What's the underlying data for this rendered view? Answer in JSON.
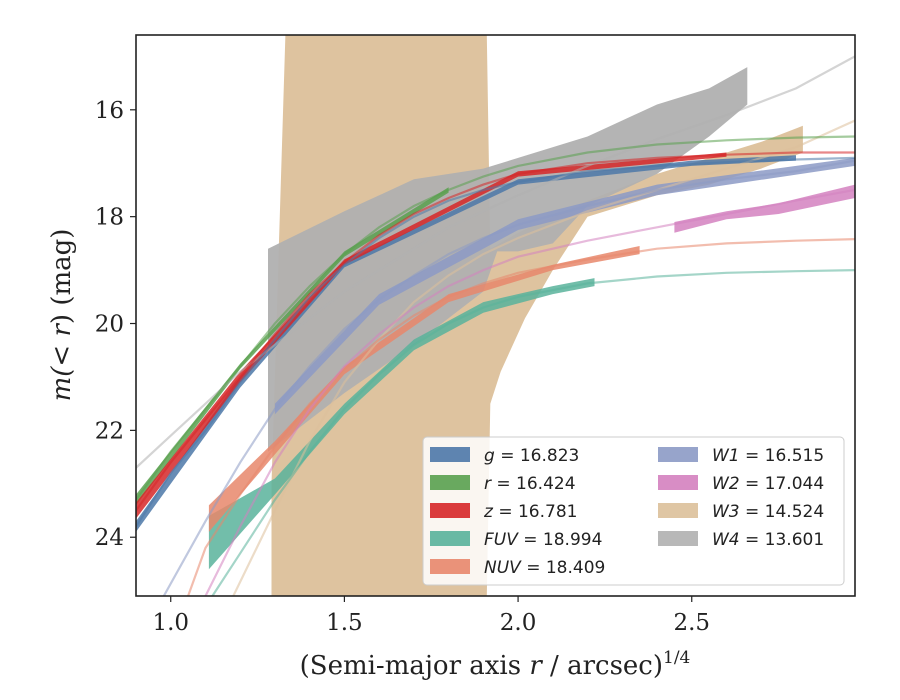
{
  "chart_data": {
    "type": "line",
    "title": "",
    "xlabel": "(Semi-major axis r / arcsec)",
    "xlabel_parts": {
      "pre": "(Semi-major axis ",
      "var": "r",
      "post": " / arcsec)",
      "sup": "1/4"
    },
    "ylabel_parts": {
      "pre": "m(",
      "op": "< r",
      "post": ") (mag)"
    },
    "xlim": [
      0.9,
      2.97
    ],
    "ylim": [
      25.1,
      14.6
    ],
    "y_inverted": true,
    "grid": false,
    "legend_position": "lower-right",
    "x_ticks": [
      "1.0",
      "1.5",
      "2.0",
      "2.5"
    ],
    "y_ticks": [
      "16",
      "18",
      "20",
      "22",
      "24"
    ],
    "series": [
      {
        "id": "g",
        "name": "g = 16.823",
        "band": "g",
        "value": "16.823",
        "color": "#4c78a8",
        "model": [
          [
            0.9,
            23.8
          ],
          [
            1.0,
            22.8
          ],
          [
            1.1,
            22.0
          ],
          [
            1.2,
            21.1
          ],
          [
            1.3,
            20.3
          ],
          [
            1.4,
            19.5
          ],
          [
            1.5,
            18.9
          ],
          [
            1.6,
            18.4
          ],
          [
            1.7,
            18.0
          ],
          [
            1.8,
            17.7
          ],
          [
            1.9,
            17.5
          ],
          [
            2.0,
            17.35
          ],
          [
            2.2,
            17.15
          ],
          [
            2.4,
            17.05
          ],
          [
            2.6,
            16.98
          ],
          [
            2.8,
            16.93
          ],
          [
            2.97,
            16.9
          ]
        ],
        "band_lo": [
          [
            0.9,
            23.7
          ],
          [
            1.2,
            21.0
          ],
          [
            1.5,
            18.85
          ],
          [
            2.0,
            17.3
          ],
          [
            2.5,
            16.95
          ],
          [
            2.8,
            16.85
          ]
        ],
        "band_hi": [
          [
            2.8,
            16.95
          ],
          [
            2.5,
            17.05
          ],
          [
            2.0,
            17.4
          ],
          [
            1.5,
            18.95
          ],
          [
            1.2,
            21.2
          ],
          [
            0.9,
            23.9
          ]
        ]
      },
      {
        "id": "r",
        "name": "r = 16.424",
        "band": "r",
        "value": "16.424",
        "color": "#59a14f",
        "model": [
          [
            0.9,
            23.3
          ],
          [
            1.0,
            22.4
          ],
          [
            1.1,
            21.6
          ],
          [
            1.2,
            20.8
          ],
          [
            1.3,
            20.0
          ],
          [
            1.4,
            19.3
          ],
          [
            1.5,
            18.7
          ],
          [
            1.6,
            18.2
          ],
          [
            1.7,
            17.8
          ],
          [
            1.8,
            17.5
          ],
          [
            1.9,
            17.25
          ],
          [
            2.0,
            17.05
          ],
          [
            2.2,
            16.8
          ],
          [
            2.4,
            16.65
          ],
          [
            2.6,
            16.57
          ],
          [
            2.8,
            16.52
          ],
          [
            2.97,
            16.5
          ]
        ],
        "band_lo": [
          [
            0.9,
            23.2
          ],
          [
            1.2,
            20.75
          ],
          [
            1.5,
            18.65
          ],
          [
            1.8,
            17.45
          ]
        ],
        "band_hi": [
          [
            1.8,
            17.55
          ],
          [
            1.5,
            18.75
          ],
          [
            1.2,
            20.85
          ],
          [
            0.9,
            23.4
          ]
        ]
      },
      {
        "id": "z",
        "name": "z = 16.781",
        "band": "z",
        "value": "16.781",
        "color": "#d62728",
        "model": [
          [
            0.9,
            23.5
          ],
          [
            1.0,
            22.6
          ],
          [
            1.1,
            21.8
          ],
          [
            1.2,
            21.0
          ],
          [
            1.3,
            20.2
          ],
          [
            1.4,
            19.45
          ],
          [
            1.5,
            18.85
          ],
          [
            1.6,
            18.35
          ],
          [
            1.7,
            17.95
          ],
          [
            1.8,
            17.65
          ],
          [
            1.9,
            17.4
          ],
          [
            2.0,
            17.2
          ],
          [
            2.2,
            17.0
          ],
          [
            2.4,
            16.9
          ],
          [
            2.6,
            16.84
          ],
          [
            2.8,
            16.8
          ],
          [
            2.97,
            16.8
          ]
        ],
        "band_lo": [
          [
            0.9,
            23.35
          ],
          [
            1.2,
            20.9
          ],
          [
            1.5,
            18.8
          ],
          [
            2.0,
            17.15
          ],
          [
            2.6,
            16.8
          ]
        ],
        "band_hi": [
          [
            2.6,
            16.88
          ],
          [
            2.0,
            17.25
          ],
          [
            1.5,
            18.9
          ],
          [
            1.2,
            21.1
          ],
          [
            0.9,
            23.65
          ]
        ]
      },
      {
        "id": "fuv",
        "name": "FUV = 18.994",
        "band": "FUV",
        "value": "18.994",
        "color": "#59b39b",
        "model": [
          [
            1.12,
            25.1
          ],
          [
            1.2,
            24.3
          ],
          [
            1.3,
            23.3
          ],
          [
            1.4,
            22.4
          ],
          [
            1.5,
            21.6
          ],
          [
            1.6,
            20.95
          ],
          [
            1.7,
            20.4
          ],
          [
            1.8,
            20.0
          ],
          [
            1.9,
            19.7
          ],
          [
            2.0,
            19.5
          ],
          [
            2.2,
            19.25
          ],
          [
            2.4,
            19.12
          ],
          [
            2.6,
            19.05
          ],
          [
            2.8,
            19.02
          ],
          [
            2.97,
            19.0
          ]
        ],
        "band_lo": [
          [
            1.11,
            23.6
          ],
          [
            1.3,
            22.9
          ],
          [
            1.5,
            21.5
          ],
          [
            1.7,
            20.3
          ],
          [
            1.9,
            19.6
          ],
          [
            2.1,
            19.3
          ],
          [
            2.22,
            19.15
          ]
        ],
        "band_hi": [
          [
            2.22,
            19.3
          ],
          [
            2.1,
            19.45
          ],
          [
            1.9,
            19.8
          ],
          [
            1.7,
            20.5
          ],
          [
            1.5,
            21.7
          ],
          [
            1.3,
            23.2
          ],
          [
            1.11,
            24.6
          ]
        ]
      },
      {
        "id": "nuv",
        "name": "NUV = 18.409",
        "band": "NUV",
        "value": "18.409",
        "color": "#e8876b",
        "model": [
          [
            1.05,
            25.1
          ],
          [
            1.1,
            24.2
          ],
          [
            1.2,
            23.2
          ],
          [
            1.3,
            22.3
          ],
          [
            1.4,
            21.5
          ],
          [
            1.5,
            20.85
          ],
          [
            1.6,
            20.3
          ],
          [
            1.7,
            19.85
          ],
          [
            1.8,
            19.5
          ],
          [
            1.9,
            19.25
          ],
          [
            2.0,
            19.05
          ],
          [
            2.2,
            18.8
          ],
          [
            2.4,
            18.6
          ],
          [
            2.6,
            18.5
          ],
          [
            2.8,
            18.45
          ],
          [
            2.97,
            18.42
          ]
        ],
        "band_lo": [
          [
            1.11,
            23.4
          ],
          [
            1.3,
            22.2
          ],
          [
            1.5,
            20.8
          ],
          [
            1.8,
            19.45
          ],
          [
            2.1,
            18.9
          ],
          [
            2.35,
            18.55
          ]
        ],
        "band_hi": [
          [
            2.35,
            18.7
          ],
          [
            2.1,
            19.0
          ],
          [
            1.8,
            19.6
          ],
          [
            1.5,
            20.95
          ],
          [
            1.3,
            22.45
          ],
          [
            1.11,
            23.9
          ]
        ]
      },
      {
        "id": "w1",
        "name": "W1 = 16.515",
        "band": "W1",
        "value": "16.515",
        "color": "#8c9ac5",
        "model": [
          [
            0.98,
            25.1
          ],
          [
            1.1,
            23.7
          ],
          [
            1.2,
            22.6
          ],
          [
            1.3,
            21.6
          ],
          [
            1.4,
            20.8
          ],
          [
            1.5,
            20.1
          ],
          [
            1.6,
            19.55
          ],
          [
            1.7,
            19.1
          ],
          [
            1.8,
            18.7
          ],
          [
            1.9,
            18.4
          ],
          [
            2.0,
            18.15
          ],
          [
            2.2,
            17.8
          ],
          [
            2.4,
            17.5
          ],
          [
            2.6,
            17.3
          ],
          [
            2.8,
            17.15
          ],
          [
            2.97,
            16.95
          ]
        ],
        "band_lo": [
          [
            1.3,
            21.5
          ],
          [
            1.6,
            19.45
          ],
          [
            2.0,
            18.05
          ],
          [
            2.4,
            17.4
          ],
          [
            2.97,
            16.9
          ]
        ],
        "band_hi": [
          [
            2.97,
            17.05
          ],
          [
            2.4,
            17.6
          ],
          [
            2.0,
            18.25
          ],
          [
            1.6,
            19.65
          ],
          [
            1.3,
            21.7
          ]
        ]
      },
      {
        "id": "w2",
        "name": "W2 = 17.044",
        "band": "W2",
        "value": "17.044",
        "color": "#d481bf",
        "model": [
          [
            1.1,
            25.1
          ],
          [
            1.2,
            23.8
          ],
          [
            1.3,
            22.6
          ],
          [
            1.4,
            21.6
          ],
          [
            1.5,
            20.8
          ],
          [
            1.6,
            20.2
          ],
          [
            1.7,
            19.7
          ],
          [
            1.8,
            19.3
          ],
          [
            1.9,
            19.0
          ],
          [
            2.0,
            18.75
          ],
          [
            2.2,
            18.45
          ],
          [
            2.4,
            18.2
          ],
          [
            2.6,
            17.95
          ],
          [
            2.8,
            17.7
          ],
          [
            2.97,
            17.5
          ]
        ],
        "band_lo": [
          [
            2.45,
            18.1
          ],
          [
            2.6,
            17.9
          ],
          [
            2.75,
            17.75
          ],
          [
            2.97,
            17.4
          ]
        ],
        "band_hi": [
          [
            2.97,
            17.65
          ],
          [
            2.75,
            17.95
          ],
          [
            2.6,
            18.05
          ],
          [
            2.45,
            18.3
          ]
        ]
      },
      {
        "id": "w3",
        "name": "W3 = 14.524",
        "band": "W3",
        "value": "14.524",
        "color": "#dcc09a",
        "model": [
          [
            1.18,
            25.1
          ],
          [
            1.3,
            23.5
          ],
          [
            1.4,
            22.2
          ],
          [
            1.5,
            21.1
          ],
          [
            1.6,
            20.3
          ],
          [
            1.7,
            19.6
          ],
          [
            1.8,
            19.1
          ],
          [
            1.9,
            18.7
          ],
          [
            2.0,
            18.4
          ],
          [
            2.2,
            17.9
          ],
          [
            2.4,
            17.5
          ],
          [
            2.6,
            17.1
          ],
          [
            2.8,
            16.7
          ],
          [
            2.97,
            16.2
          ]
        ],
        "band_lo": [
          [
            1.29,
            25.1
          ],
          [
            1.29,
            23.0
          ],
          [
            1.33,
            14.6
          ],
          [
            1.91,
            14.6
          ],
          [
            1.92,
            18.6
          ],
          [
            2.0,
            18.3
          ],
          [
            2.2,
            17.7
          ],
          [
            2.4,
            17.2
          ],
          [
            2.55,
            16.9
          ],
          [
            2.7,
            16.6
          ],
          [
            2.82,
            16.3
          ]
        ],
        "band_hi": [
          [
            2.82,
            16.8
          ],
          [
            2.7,
            17.1
          ],
          [
            2.55,
            17.4
          ],
          [
            2.4,
            17.6
          ],
          [
            2.2,
            18.0
          ],
          [
            2.1,
            19.0
          ],
          [
            2.02,
            19.9
          ],
          [
            1.95,
            20.9
          ],
          [
            1.92,
            21.5
          ],
          [
            1.91,
            25.1
          ]
        ]
      },
      {
        "id": "w4",
        "name": "W4 = 13.601",
        "band": "W4",
        "value": "13.601",
        "color": "#b0b0b0",
        "model": [
          [
            0.9,
            22.7
          ],
          [
            1.0,
            22.1
          ],
          [
            1.1,
            21.5
          ],
          [
            1.2,
            20.9
          ],
          [
            1.3,
            20.4
          ],
          [
            1.4,
            19.9
          ],
          [
            1.5,
            19.4
          ],
          [
            1.6,
            19.0
          ],
          [
            1.7,
            18.6
          ],
          [
            1.8,
            18.2
          ],
          [
            1.9,
            17.9
          ],
          [
            2.0,
            17.6
          ],
          [
            2.2,
            17.05
          ],
          [
            2.4,
            16.55
          ],
          [
            2.6,
            16.1
          ],
          [
            2.8,
            15.6
          ],
          [
            2.97,
            15.0
          ]
        ],
        "band_lo": [
          [
            1.28,
            18.6
          ],
          [
            1.5,
            17.9
          ],
          [
            1.7,
            17.3
          ],
          [
            1.9,
            17.1
          ],
          [
            2.0,
            16.9
          ],
          [
            2.2,
            16.5
          ],
          [
            2.4,
            15.9
          ],
          [
            2.55,
            15.6
          ],
          [
            2.66,
            15.2
          ]
        ],
        "band_hi": [
          [
            2.66,
            15.9
          ],
          [
            2.55,
            16.5
          ],
          [
            2.4,
            17.2
          ],
          [
            2.2,
            17.8
          ],
          [
            2.1,
            18.5
          ],
          [
            2.0,
            18.65
          ],
          [
            1.94,
            18.65
          ],
          [
            1.9,
            19.4
          ],
          [
            1.7,
            20.4
          ],
          [
            1.5,
            21.3
          ],
          [
            1.28,
            22.4
          ]
        ]
      }
    ]
  }
}
